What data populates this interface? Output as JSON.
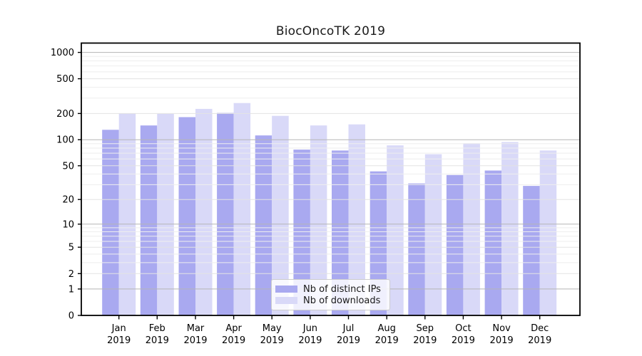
{
  "chart_data": {
    "type": "bar",
    "title": "BiocOncoTK 2019",
    "categories": [
      "Jan 2019",
      "Feb 2019",
      "Mar 2019",
      "Apr 2019",
      "May 2019",
      "Jun 2019",
      "Jul 2019",
      "Aug 2019",
      "Sep 2019",
      "Oct 2019",
      "Nov 2019",
      "Dec 2019"
    ],
    "x_months": [
      "Jan",
      "Feb",
      "Mar",
      "Apr",
      "May",
      "Jun",
      "Jul",
      "Aug",
      "Sep",
      "Oct",
      "Nov",
      "Dec"
    ],
    "x_year": "2019",
    "series": [
      {
        "name": "Nb of distinct IPs",
        "color": "#a9a9f0",
        "values": [
          130,
          146,
          182,
          203,
          112,
          77,
          75,
          43,
          31,
          39,
          44,
          29
        ]
      },
      {
        "name": "Nb of downloads",
        "color": "#d9d9f8",
        "values": [
          200,
          198,
          226,
          264,
          188,
          146,
          150,
          86,
          68,
          91,
          94,
          75
        ]
      }
    ],
    "y_ticks": [
      0,
      1,
      2,
      5,
      10,
      20,
      50,
      100,
      200,
      500,
      1000
    ],
    "y_minor_ticks": [
      3,
      4,
      6,
      7,
      8,
      9,
      30,
      40,
      60,
      70,
      80,
      90,
      300,
      400,
      600,
      700,
      800,
      900
    ],
    "y_scale": "log1p",
    "ylim": [
      0,
      1280
    ],
    "grid": true,
    "legend_position": "lower center",
    "colors": {
      "grid_decade": "#b5b5b5",
      "grid_major": "#e3e3e3",
      "grid_minor": "#eeeeee",
      "spine": "#000000",
      "tick_label": "#000000"
    }
  }
}
